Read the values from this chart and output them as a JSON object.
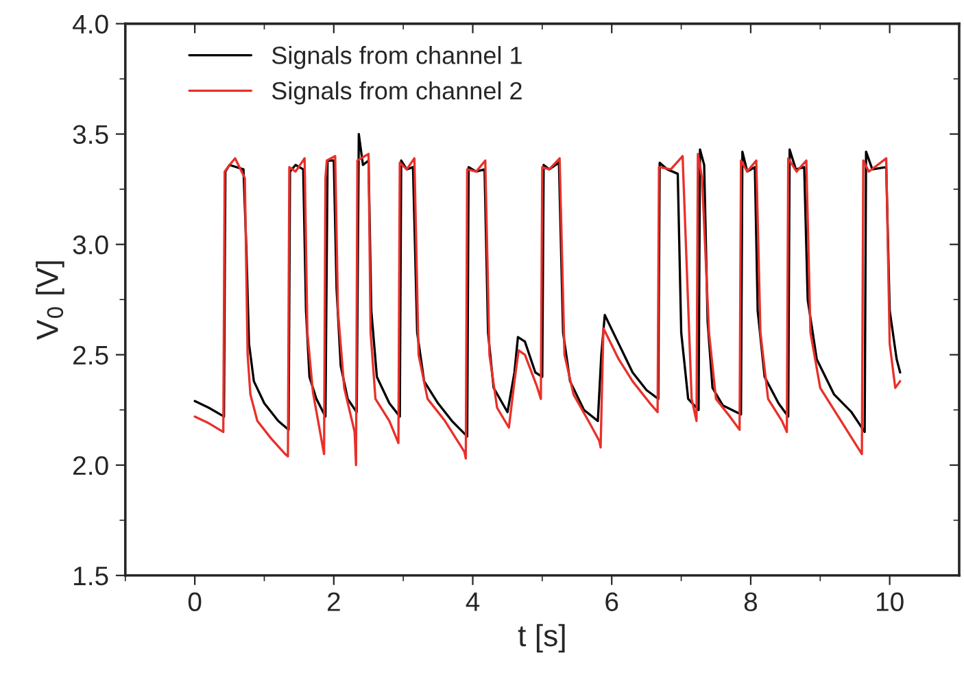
{
  "chart_data": {
    "type": "line",
    "xlabel": "t [s]",
    "ylabel": "V$_{0}$ [V]",
    "xlim": [
      -1,
      11
    ],
    "xticks": [
      0,
      2,
      4,
      6,
      8,
      10
    ],
    "ylim": [
      1.5,
      4.0
    ],
    "yticks": [
      {
        "value": 1.5,
        "label": "1.5"
      },
      {
        "value": 2.0,
        "label": "2.0"
      },
      {
        "value": 2.5,
        "label": "2.5"
      },
      {
        "value": 3.0,
        "label": "3.0"
      },
      {
        "value": 3.5,
        "label": "3.5"
      },
      {
        "value": 4.0,
        "label": "4.0"
      }
    ],
    "grid": false,
    "legend": "top left",
    "marker": "none",
    "line_style": "solid",
    "series": [
      {
        "name": "Signals from channel 1",
        "color": "#000000",
        "x": [
          0.0,
          0.2,
          0.42,
          0.44,
          0.5,
          0.7,
          0.74,
          0.78,
          0.85,
          1.0,
          1.2,
          1.35,
          1.37,
          1.45,
          1.56,
          1.6,
          1.65,
          1.75,
          1.88,
          1.91,
          2.0,
          2.04,
          2.1,
          2.2,
          2.33,
          2.36,
          2.42,
          2.5,
          2.54,
          2.62,
          2.8,
          2.95,
          2.97,
          3.05,
          3.14,
          3.2,
          3.3,
          3.5,
          3.7,
          3.92,
          3.94,
          4.05,
          4.17,
          4.22,
          4.3,
          4.5,
          4.6,
          4.65,
          4.75,
          4.9,
          5.0,
          5.02,
          5.1,
          5.24,
          5.3,
          5.4,
          5.6,
          5.8,
          5.85,
          5.9,
          6.1,
          6.3,
          6.5,
          6.67,
          6.69,
          6.8,
          6.95,
          7.0,
          7.1,
          7.25,
          7.27,
          7.33,
          7.38,
          7.45,
          7.6,
          7.86,
          7.88,
          7.95,
          8.06,
          8.1,
          8.2,
          8.4,
          8.54,
          8.56,
          8.65,
          8.77,
          8.82,
          8.95,
          9.2,
          9.45,
          9.64,
          9.66,
          9.75,
          9.95,
          10.0,
          10.1,
          10.15
        ],
        "values": [
          2.29,
          2.26,
          2.22,
          3.33,
          3.36,
          3.34,
          3.0,
          2.55,
          2.38,
          2.28,
          2.2,
          2.16,
          3.33,
          3.36,
          3.34,
          2.7,
          2.4,
          2.3,
          2.22,
          3.38,
          3.38,
          2.8,
          2.45,
          2.3,
          2.24,
          3.5,
          3.36,
          3.38,
          2.7,
          2.4,
          2.28,
          2.22,
          3.38,
          3.34,
          3.35,
          2.6,
          2.38,
          2.28,
          2.2,
          2.13,
          3.35,
          3.33,
          3.34,
          2.6,
          2.35,
          2.24,
          2.42,
          2.58,
          2.56,
          2.42,
          2.4,
          3.36,
          3.34,
          3.37,
          2.6,
          2.38,
          2.25,
          2.2,
          2.5,
          2.68,
          2.55,
          2.42,
          2.34,
          2.3,
          3.37,
          3.34,
          3.32,
          2.6,
          2.3,
          2.25,
          3.43,
          3.36,
          2.65,
          2.35,
          2.27,
          2.23,
          3.42,
          3.33,
          3.35,
          2.7,
          2.4,
          2.28,
          2.22,
          3.43,
          3.34,
          3.35,
          2.75,
          2.48,
          2.32,
          2.24,
          2.15,
          3.42,
          3.34,
          3.35,
          2.7,
          2.48,
          2.42
        ]
      },
      {
        "name": "Signals from channel 2",
        "color": "#e8302a",
        "x": [
          0.0,
          0.2,
          0.41,
          0.43,
          0.5,
          0.58,
          0.72,
          0.76,
          0.8,
          0.9,
          1.1,
          1.3,
          1.34,
          1.36,
          1.45,
          1.58,
          1.62,
          1.7,
          1.86,
          1.88,
          1.9,
          2.02,
          2.06,
          2.15,
          2.3,
          2.32,
          2.34,
          2.5,
          2.53,
          2.6,
          2.8,
          2.93,
          2.95,
          3.05,
          3.16,
          3.22,
          3.35,
          3.6,
          3.88,
          3.9,
          3.92,
          4.05,
          4.18,
          4.24,
          4.35,
          4.52,
          4.6,
          4.66,
          4.75,
          4.92,
          4.98,
          5.0,
          5.1,
          5.25,
          5.32,
          5.45,
          5.7,
          5.82,
          5.84,
          5.88,
          6.1,
          6.3,
          6.55,
          6.66,
          6.68,
          6.85,
          7.02,
          7.15,
          7.22,
          7.24,
          7.3,
          7.4,
          7.5,
          7.7,
          7.84,
          7.86,
          7.95,
          8.08,
          8.14,
          8.25,
          8.45,
          8.52,
          8.54,
          8.66,
          8.8,
          8.86,
          9.0,
          9.3,
          9.5,
          9.6,
          9.62,
          9.7,
          9.95,
          10.0,
          10.08,
          10.15
        ],
        "values": [
          2.22,
          2.19,
          2.15,
          3.33,
          3.36,
          3.39,
          3.3,
          2.5,
          2.32,
          2.2,
          2.12,
          2.05,
          2.04,
          3.35,
          3.33,
          3.39,
          2.6,
          2.33,
          2.05,
          3.3,
          3.38,
          3.4,
          2.7,
          2.35,
          2.15,
          2.0,
          3.38,
          3.41,
          2.6,
          2.3,
          2.2,
          2.1,
          3.37,
          3.34,
          3.39,
          2.5,
          2.3,
          2.2,
          2.06,
          2.03,
          3.34,
          3.33,
          3.38,
          2.5,
          2.26,
          2.17,
          2.38,
          2.52,
          2.5,
          2.36,
          2.3,
          3.35,
          3.34,
          3.39,
          2.5,
          2.32,
          2.18,
          2.11,
          2.08,
          2.62,
          2.48,
          2.38,
          2.28,
          2.24,
          3.35,
          3.34,
          3.4,
          2.3,
          2.2,
          3.41,
          3.3,
          2.6,
          2.3,
          2.22,
          2.16,
          3.38,
          3.33,
          3.38,
          2.6,
          2.3,
          2.2,
          2.15,
          3.39,
          3.33,
          3.38,
          2.6,
          2.35,
          2.2,
          2.1,
          2.05,
          3.38,
          3.33,
          3.39,
          2.55,
          2.35,
          2.38
        ]
      }
    ]
  }
}
